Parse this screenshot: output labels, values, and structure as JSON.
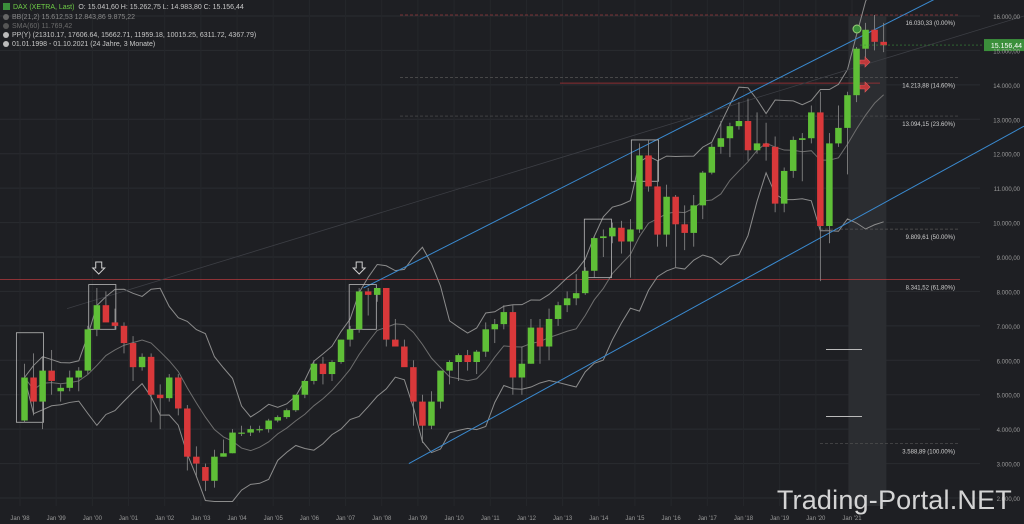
{
  "legend": {
    "instrument": "DAX (XETRA, Last)",
    "ohlc": "O: 15.041,60  H: 15.262,75  L: 14.983,80  C: 15.156,44",
    "bb": "BB(21,2)  15.612,53  12.843,86  9.875,22",
    "sma": "SMA(60)  11.769,42",
    "pp": "PP(Y)  (21310.17, 17606.64, 15662.71, 11959.18, 10015.25, 6311.72, 4367.79)",
    "range": "01.01.1998 - 01.10.2021  (24 Jahre, 3 Monate)"
  },
  "price_tag": "15.156,44",
  "watermark": "Trading-Portal.NET",
  "colors": {
    "up": "#5fbf37",
    "down": "#d9383a",
    "channel": "#3a8ad0",
    "bands": "#8c8c8c",
    "fib": "#7a7a7a",
    "tag": "#3b8f3b"
  },
  "chart_data": {
    "type": "candlestick",
    "interval": "quarterly",
    "ylim": [
      1800,
      16400
    ],
    "y_ticks": [
      "2.000,00",
      "3.000,00",
      "4.000,00",
      "5.000,00",
      "6.000,00",
      "7.000,00",
      "8.000,00",
      "9.000,00",
      "10.000,00",
      "11.000,00",
      "12.000,00",
      "13.000,00",
      "14.000,00",
      "15.000,00",
      "16.000,00"
    ],
    "x_ticks": [
      "Jan '98",
      "Jan '99",
      "Jan '00",
      "Jan '01",
      "Jan '02",
      "Jan '03",
      "Jan '04",
      "Jan '05",
      "Jan '06",
      "Jan '07",
      "Jan '08",
      "Jan '09",
      "Jan '10",
      "Jan '11",
      "Jan '12",
      "Jan '13",
      "Jan '14",
      "Jan '15",
      "Jan '16",
      "Jan '17",
      "Jan '18",
      "Jan '19",
      "Jan '20",
      "Jan '21"
    ],
    "fib_levels": [
      {
        "label": "16.030,33 (0.00%)",
        "value": 16030
      },
      {
        "label": "14.213,88 (14.60%)",
        "value": 14214
      },
      {
        "label": "13.094,15 (23.60%)",
        "value": 13094
      },
      {
        "label": "9.809,61 (50.00%)",
        "value": 9810
      },
      {
        "label": "8.341,52 (61.80%)",
        "value": 8342
      },
      {
        "label": "3.588,89 (100.00%)",
        "value": 3589
      }
    ],
    "candles": [
      [
        1998.0,
        4250,
        5900,
        4200,
        5500
      ],
      [
        1998.25,
        5500,
        6200,
        4400,
        4800
      ],
      [
        1998.5,
        4800,
        6100,
        4000,
        5700
      ],
      [
        1998.75,
        5700,
        6300,
        5000,
        5400
      ],
      [
        1999.0,
        5100,
        5300,
        4800,
        5200
      ],
      [
        1999.25,
        5200,
        5700,
        5100,
        5500
      ],
      [
        1999.5,
        5500,
        5800,
        5100,
        5700
      ],
      [
        1999.75,
        5700,
        7000,
        5600,
        6900
      ],
      [
        2000.0,
        6900,
        8100,
        6700,
        7600
      ],
      [
        2000.25,
        7600,
        8000,
        7200,
        7100
      ],
      [
        2000.5,
        7100,
        7500,
        6900,
        7000
      ],
      [
        2000.75,
        7000,
        7100,
        6200,
        6500
      ],
      [
        2001.0,
        6500,
        6700,
        5400,
        5800
      ],
      [
        2001.25,
        5800,
        6200,
        5700,
        6100
      ],
      [
        2001.5,
        6100,
        6200,
        4200,
        5000
      ],
      [
        2001.75,
        5000,
        5300,
        4000,
        4900
      ],
      [
        2002.0,
        4900,
        5600,
        4800,
        5500
      ],
      [
        2002.25,
        5500,
        5600,
        4400,
        4600
      ],
      [
        2002.5,
        4600,
        4700,
        2800,
        3200
      ],
      [
        2002.75,
        3200,
        3500,
        2600,
        3000
      ],
      [
        2003.0,
        2900,
        3000,
        2200,
        2500
      ],
      [
        2003.25,
        2500,
        3400,
        2300,
        3200
      ],
      [
        2003.5,
        3200,
        3700,
        3200,
        3300
      ],
      [
        2003.75,
        3300,
        4000,
        3300,
        3900
      ],
      [
        2004.0,
        3900,
        4100,
        3800,
        3900
      ],
      [
        2004.25,
        3900,
        4100,
        3800,
        4000
      ],
      [
        2004.5,
        4000,
        4100,
        3900,
        4000
      ],
      [
        2004.75,
        4000,
        4300,
        3900,
        4250
      ],
      [
        2005.0,
        4250,
        4400,
        4200,
        4350
      ],
      [
        2005.25,
        4350,
        4600,
        4300,
        4550
      ],
      [
        2005.5,
        4550,
        5000,
        4500,
        5000
      ],
      [
        2005.75,
        5000,
        5400,
        4900,
        5400
      ],
      [
        2006.0,
        5400,
        6000,
        5300,
        5900
      ],
      [
        2006.25,
        5900,
        6100,
        5300,
        5600
      ],
      [
        2006.5,
        5600,
        6000,
        5400,
        5950
      ],
      [
        2006.75,
        5950,
        6600,
        5900,
        6600
      ],
      [
        2007.0,
        6600,
        7000,
        6400,
        6900
      ],
      [
        2007.25,
        6900,
        8100,
        6800,
        8000
      ],
      [
        2007.5,
        8000,
        8100,
        7300,
        7900
      ],
      [
        2007.75,
        7900,
        8100,
        7700,
        8100
      ],
      [
        2008.0,
        8100,
        8100,
        6400,
        6600
      ],
      [
        2008.25,
        6600,
        7200,
        6400,
        6400
      ],
      [
        2008.5,
        6400,
        6600,
        5900,
        5800
      ],
      [
        2008.75,
        5800,
        6000,
        4100,
        4800
      ],
      [
        2009.0,
        4800,
        5000,
        3600,
        4100
      ],
      [
        2009.25,
        4100,
        5100,
        4000,
        4800
      ],
      [
        2009.5,
        4800,
        5700,
        4600,
        5700
      ],
      [
        2009.75,
        5700,
        6000,
        5300,
        5950
      ],
      [
        2010.0,
        5950,
        6200,
        5400,
        6150
      ],
      [
        2010.25,
        6150,
        6300,
        5700,
        5950
      ],
      [
        2010.5,
        5950,
        6300,
        5600,
        6250
      ],
      [
        2010.75,
        6250,
        7100,
        6100,
        6900
      ],
      [
        2011.0,
        6900,
        7200,
        6500,
        7050
      ],
      [
        2011.25,
        7050,
        7600,
        6900,
        7400
      ],
      [
        2011.5,
        7400,
        7600,
        5000,
        5500
      ],
      [
        2011.75,
        5500,
        6400,
        5000,
        5900
      ],
      [
        2012.0,
        5900,
        7200,
        5900,
        6950
      ],
      [
        2012.25,
        6950,
        7200,
        5900,
        6400
      ],
      [
        2012.5,
        6400,
        7500,
        6000,
        7200
      ],
      [
        2012.75,
        7200,
        7700,
        7000,
        7600
      ],
      [
        2013.0,
        7600,
        8000,
        7400,
        7800
      ],
      [
        2013.25,
        7800,
        8500,
        7600,
        7950
      ],
      [
        2013.5,
        7950,
        8700,
        7900,
        8600
      ],
      [
        2013.75,
        8600,
        9600,
        8400,
        9550
      ],
      [
        2014.0,
        9550,
        9800,
        9000,
        9600
      ],
      [
        2014.25,
        9600,
        10000,
        9400,
        9850
      ],
      [
        2014.5,
        9850,
        10050,
        9100,
        9450
      ],
      [
        2014.75,
        9450,
        10100,
        8400,
        9800
      ],
      [
        2015.0,
        9800,
        12300,
        9700,
        11950
      ],
      [
        2015.25,
        11950,
        12400,
        10900,
        11050
      ],
      [
        2015.5,
        11050,
        11800,
        9300,
        9650
      ],
      [
        2015.75,
        9650,
        11100,
        9300,
        10750
      ],
      [
        2016.0,
        10750,
        10800,
        8700,
        9950
      ],
      [
        2016.25,
        9950,
        10500,
        9200,
        9700
      ],
      [
        2016.5,
        9700,
        10800,
        9300,
        10500
      ],
      [
        2016.75,
        10500,
        11500,
        10100,
        11450
      ],
      [
        2017.0,
        11450,
        12300,
        11400,
        12200
      ],
      [
        2017.25,
        12200,
        12950,
        12000,
        12450
      ],
      [
        2017.5,
        12450,
        12900,
        11900,
        12800
      ],
      [
        2017.75,
        12800,
        13500,
        12700,
        12950
      ],
      [
        2018.0,
        12950,
        13600,
        11800,
        12100
      ],
      [
        2018.25,
        12100,
        13200,
        12000,
        12300
      ],
      [
        2018.5,
        12300,
        12900,
        11800,
        12200
      ],
      [
        2018.75,
        12200,
        12500,
        10300,
        10550
      ],
      [
        2019.0,
        10550,
        11600,
        10300,
        11500
      ],
      [
        2019.25,
        11500,
        12500,
        11300,
        12400
      ],
      [
        2019.5,
        12400,
        12600,
        11200,
        12450
      ],
      [
        2019.75,
        12450,
        13400,
        12300,
        13200
      ],
      [
        2020.0,
        13200,
        13800,
        8300,
        9900
      ],
      [
        2020.25,
        9900,
        12600,
        9400,
        12300
      ],
      [
        2020.5,
        12300,
        13400,
        12200,
        12750
      ],
      [
        2020.75,
        12750,
        13800,
        11400,
        13700
      ],
      [
        2021.0,
        13700,
        15100,
        13500,
        15050
      ],
      [
        2021.25,
        15050,
        15800,
        14800,
        15600
      ],
      [
        2021.5,
        15600,
        16030,
        15000,
        15250
      ],
      [
        2021.75,
        15250,
        15800,
        14950,
        15150
      ]
    ]
  }
}
